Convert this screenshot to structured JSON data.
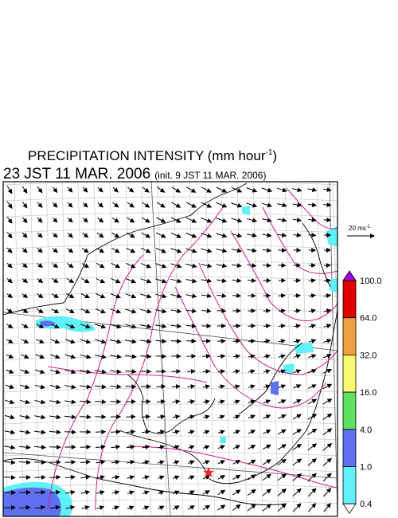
{
  "title": {
    "text": "PRECIPITATION INTENSITY (mm hour",
    "superscript": "-1",
    "close": ")"
  },
  "subtitle": {
    "time": "23 JST 11 MAR. 2006",
    "init": "(init. 9 JST 11 MAR. 2006)"
  },
  "vector_legend": {
    "text": "20 ms",
    "superscript": "-1"
  },
  "colorbar": {
    "over_color": "#a000e0",
    "under_color": "#ffffff",
    "levels": [
      {
        "label": "100.0",
        "color": "#e00000"
      },
      {
        "label": "64.0",
        "color": "#f0a040"
      },
      {
        "label": "32.0",
        "color": "#f8f870"
      },
      {
        "label": "16.0",
        "color": "#60e060"
      },
      {
        "label": "4.0",
        "color": "#6070f0"
      },
      {
        "label": "1.0",
        "color": "#60f0f8"
      },
      {
        "label": "0.4",
        "color": null
      }
    ]
  }
}
